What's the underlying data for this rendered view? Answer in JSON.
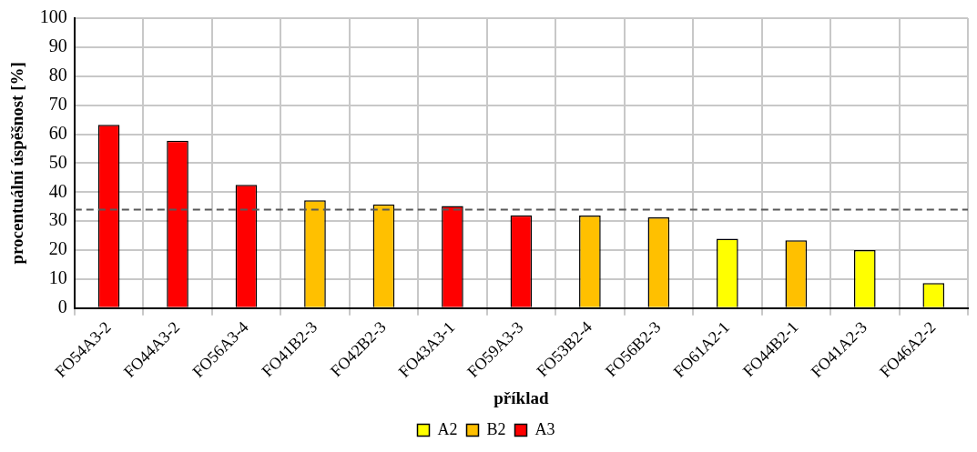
{
  "chart_data": {
    "type": "bar",
    "xlabel": "příklad",
    "ylabel": "procentuální úspěšnost [%]",
    "categories": [
      "FO54A3-2",
      "FO44A3-2",
      "FO56A3-4",
      "FO41B2-3",
      "FO42B2-3",
      "FO43A3-1",
      "FO59A3-3",
      "FO53B2-4",
      "FO56B2-3",
      "FO61A2-1",
      "FO44B2-1",
      "FO41A2-3",
      "FO46A2-2"
    ],
    "series": [
      {
        "name": "A2",
        "color": "#ffff00",
        "values": [
          null,
          null,
          null,
          null,
          null,
          null,
          null,
          null,
          null,
          23.9,
          null,
          20.0,
          8.6
        ]
      },
      {
        "name": "B2",
        "color": "#ffc000",
        "values": [
          null,
          null,
          null,
          37.2,
          35.8,
          null,
          null,
          31.9,
          31.3,
          null,
          23.4,
          null,
          null
        ]
      },
      {
        "name": "A3",
        "color": "#ff0000",
        "values": [
          63.2,
          57.7,
          42.5,
          null,
          null,
          35.2,
          32.0,
          null,
          null,
          null,
          null,
          null,
          null
        ]
      }
    ],
    "ylim": [
      0,
      100
    ],
    "yticks": [
      0,
      10,
      20,
      30,
      40,
      50,
      60,
      70,
      80,
      90,
      100
    ],
    "ref_lines": [
      {
        "axis": "y",
        "value": 34,
        "color": "#595959",
        "line_style": "dashed"
      }
    ],
    "grid": true,
    "legend": "bottom"
  }
}
